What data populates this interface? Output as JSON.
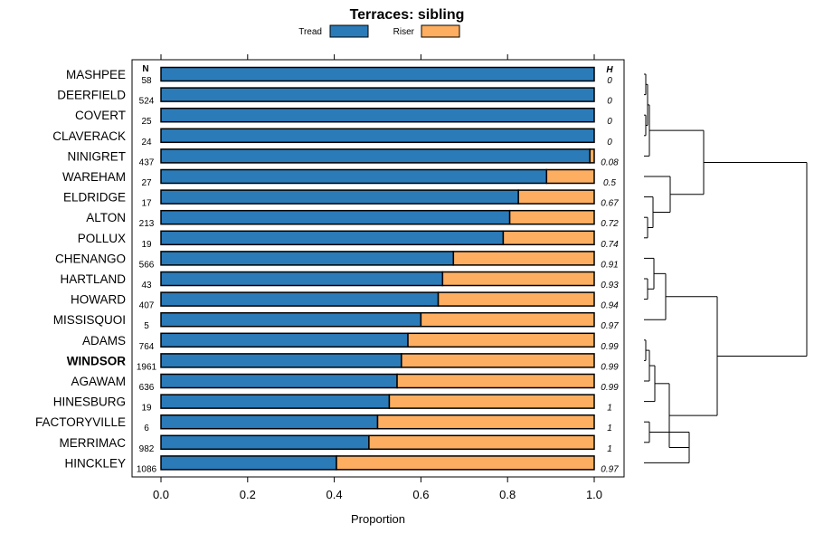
{
  "chart_data": {
    "type": "bar",
    "stacked": true,
    "orientation": "horizontal",
    "title": "Terraces: sibling",
    "xlabel": "Proportion",
    "xlim": [
      0,
      1
    ],
    "xticks": [
      "0.0",
      "0.2",
      "0.4",
      "0.6",
      "0.8",
      "1.0"
    ],
    "legend": [
      "Tread",
      "Riser"
    ],
    "colors": {
      "Tread": "#2b7bb9",
      "Riser": "#fdae61"
    },
    "n_header": "N",
    "h_header": "H",
    "bold_category": "WINDSOR",
    "categories": [
      "MASHPEE",
      "DEERFIELD",
      "COVERT",
      "CLAVERACK",
      "NINIGRET",
      "WAREHAM",
      "ELDRIDGE",
      "ALTON",
      "POLLUX",
      "CHENANGO",
      "HARTLAND",
      "HOWARD",
      "MISSISQUOI",
      "ADAMS",
      "WINDSOR",
      "AGAWAM",
      "HINESBURG",
      "FACTORYVILLE",
      "MERRIMAC",
      "HINCKLEY"
    ],
    "N": [
      "58",
      "524",
      "25",
      "24",
      "437",
      "27",
      "17",
      "213",
      "19",
      "566",
      "43",
      "407",
      "5",
      "764",
      "1961",
      "636",
      "19",
      "6",
      "982",
      "1086"
    ],
    "H": [
      "0",
      "0",
      "0",
      "0",
      "0.08",
      "0.5",
      "0.67",
      "0.72",
      "0.74",
      "0.91",
      "0.93",
      "0.94",
      "0.97",
      "0.99",
      "0.99",
      "0.99",
      "1",
      "1",
      "1",
      "0.97"
    ],
    "series": [
      {
        "name": "Tread",
        "values": [
          1.0,
          1.0,
          1.0,
          1.0,
          0.99,
          0.89,
          0.825,
          0.805,
          0.79,
          0.675,
          0.65,
          0.64,
          0.6,
          0.57,
          0.555,
          0.545,
          0.527,
          0.5,
          0.48,
          0.405
        ]
      },
      {
        "name": "Riser",
        "values": [
          0.0,
          0.0,
          0.0,
          0.0,
          0.01,
          0.11,
          0.175,
          0.195,
          0.21,
          0.325,
          0.35,
          0.36,
          0.4,
          0.43,
          0.445,
          0.455,
          0.473,
          0.5,
          0.52,
          0.595
        ]
      }
    ],
    "dendrogram": "hierarchical clustering tree of the 20 categories shown at right"
  }
}
